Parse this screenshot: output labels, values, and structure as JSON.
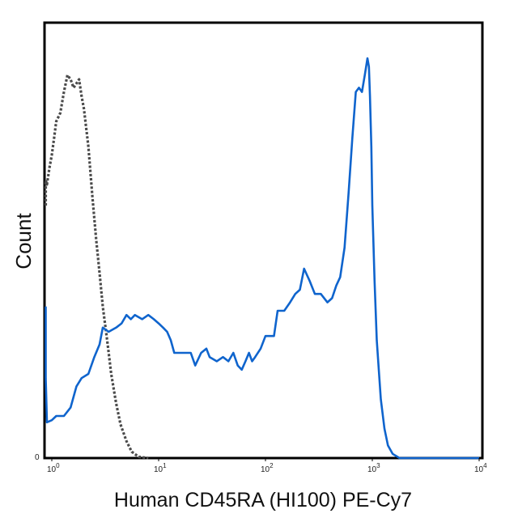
{
  "chart_data": {
    "type": "line",
    "xscale": "log",
    "xlim": [
      0.8,
      10000
    ],
    "ylim": [
      0,
      1
    ],
    "xlabel": "Human CD45RA (HI100) PE-Cy7",
    "ylabel": "Count",
    "y_zero_label": "0",
    "x_ticks": [
      {
        "value": 1,
        "base": "10",
        "exp": "0"
      },
      {
        "value": 10,
        "base": "10",
        "exp": "1"
      },
      {
        "value": 100,
        "base": "10",
        "exp": "2"
      },
      {
        "value": 1000,
        "base": "10",
        "exp": "3"
      },
      {
        "value": 10000,
        "base": "10",
        "exp": "4"
      }
    ],
    "grid": false,
    "legend": "none",
    "series": [
      {
        "style": "dotted",
        "color": "#4a4a4a",
        "points": [
          [
            0.81,
            0.6
          ],
          [
            0.85,
            0.66
          ],
          [
            0.9,
            0.65
          ],
          [
            0.95,
            0.69
          ],
          [
            1.0,
            0.72
          ],
          [
            1.05,
            0.76
          ],
          [
            1.1,
            0.8
          ],
          [
            1.2,
            0.82
          ],
          [
            1.3,
            0.87
          ],
          [
            1.4,
            0.91
          ],
          [
            1.5,
            0.9
          ],
          [
            1.6,
            0.88
          ],
          [
            1.7,
            0.89
          ],
          [
            1.8,
            0.9
          ],
          [
            1.9,
            0.86
          ],
          [
            2.0,
            0.83
          ],
          [
            2.2,
            0.74
          ],
          [
            2.4,
            0.62
          ],
          [
            2.6,
            0.52
          ],
          [
            2.8,
            0.44
          ],
          [
            3.0,
            0.36
          ],
          [
            3.3,
            0.28
          ],
          [
            3.6,
            0.2
          ],
          [
            4.0,
            0.13
          ],
          [
            4.4,
            0.08
          ],
          [
            5.0,
            0.04
          ],
          [
            5.6,
            0.015
          ],
          [
            6.5,
            0.003
          ],
          [
            8.0,
            0.0
          ]
        ]
      },
      {
        "style": "solid",
        "color": "#0f64cd",
        "points": [
          [
            0.8,
            0.36
          ],
          [
            0.85,
            0.19
          ],
          [
            0.9,
            0.085
          ],
          [
            1.0,
            0.09
          ],
          [
            1.1,
            0.1
          ],
          [
            1.3,
            0.1
          ],
          [
            1.5,
            0.12
          ],
          [
            1.7,
            0.17
          ],
          [
            1.9,
            0.19
          ],
          [
            2.2,
            0.2
          ],
          [
            2.5,
            0.24
          ],
          [
            2.8,
            0.27
          ],
          [
            3.0,
            0.31
          ],
          [
            3.4,
            0.3
          ],
          [
            4.0,
            0.31
          ],
          [
            4.5,
            0.32
          ],
          [
            5.0,
            0.34
          ],
          [
            5.5,
            0.33
          ],
          [
            6.0,
            0.34
          ],
          [
            7.0,
            0.33
          ],
          [
            8.0,
            0.34
          ],
          [
            9.0,
            0.33
          ],
          [
            10.0,
            0.32
          ],
          [
            11.0,
            0.31
          ],
          [
            12.0,
            0.3
          ],
          [
            13.0,
            0.28
          ],
          [
            14.0,
            0.25
          ],
          [
            16.0,
            0.25
          ],
          [
            18.0,
            0.25
          ],
          [
            20.0,
            0.25
          ],
          [
            22.0,
            0.22
          ],
          [
            25.0,
            0.25
          ],
          [
            28.0,
            0.26
          ],
          [
            30.0,
            0.24
          ],
          [
            35.0,
            0.23
          ],
          [
            40.0,
            0.24
          ],
          [
            45.0,
            0.23
          ],
          [
            50.0,
            0.25
          ],
          [
            55.0,
            0.22
          ],
          [
            60.0,
            0.21
          ],
          [
            65.0,
            0.23
          ],
          [
            70.0,
            0.25
          ],
          [
            75.0,
            0.23
          ],
          [
            80.0,
            0.24
          ],
          [
            90.0,
            0.26
          ],
          [
            100.0,
            0.29
          ],
          [
            110.0,
            0.29
          ],
          [
            120.0,
            0.29
          ],
          [
            130.0,
            0.35
          ],
          [
            150.0,
            0.35
          ],
          [
            170.0,
            0.37
          ],
          [
            190.0,
            0.39
          ],
          [
            210.0,
            0.4
          ],
          [
            230.0,
            0.45
          ],
          [
            260.0,
            0.42
          ],
          [
            290.0,
            0.39
          ],
          [
            330.0,
            0.39
          ],
          [
            380.0,
            0.37
          ],
          [
            420.0,
            0.38
          ],
          [
            460.0,
            0.41
          ],
          [
            500.0,
            0.43
          ],
          [
            550.0,
            0.5
          ],
          [
            600.0,
            0.63
          ],
          [
            650.0,
            0.76
          ],
          [
            700.0,
            0.87
          ],
          [
            750.0,
            0.88
          ],
          [
            800.0,
            0.87
          ],
          [
            850.0,
            0.91
          ],
          [
            900.0,
            0.95
          ],
          [
            930.0,
            0.93
          ],
          [
            950.0,
            0.86
          ],
          [
            980.0,
            0.74
          ],
          [
            1000.0,
            0.6
          ],
          [
            1050.0,
            0.42
          ],
          [
            1100.0,
            0.28
          ],
          [
            1200.0,
            0.14
          ],
          [
            1300.0,
            0.07
          ],
          [
            1400.0,
            0.03
          ],
          [
            1550.0,
            0.01
          ],
          [
            1800.0,
            0.0
          ],
          [
            10000.0,
            0.0
          ]
        ]
      }
    ]
  }
}
